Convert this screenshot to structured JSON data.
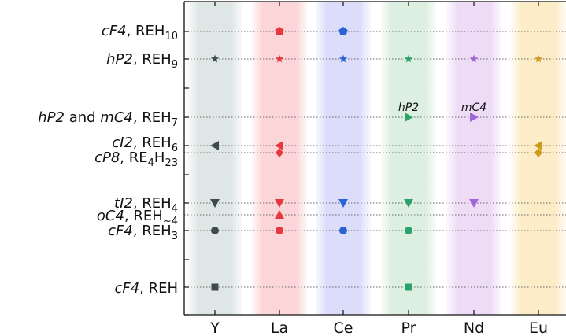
{
  "chart_data": {
    "type": "scatter",
    "title": "",
    "xlabel": "",
    "ylabel": "",
    "x_categories": [
      "Y",
      "La",
      "Ce",
      "Pr",
      "Nd",
      "Eu"
    ],
    "category_colors": {
      "Y": "#3d4a4f",
      "La": "#e8383d",
      "Ce": "#2a63d6",
      "Pr": "#2aa36a",
      "Nd": "#a064dc",
      "Eu": "#cf9a1a"
    },
    "band_colors": {
      "Y": "#dfe7e6",
      "La": "#fbd5d7",
      "Ce": "#dcdcfb",
      "Pr": "#dcefe0",
      "Nd": "#eedcf7",
      "Eu": "#fcecc7"
    },
    "y_categories": [
      {
        "key": "cF4_REH10",
        "pre": "cF4",
        "mid": ", REH",
        "sub": "10"
      },
      {
        "key": "hP2_REH9",
        "pre": "hP2",
        "mid": ", REH",
        "sub": "9"
      },
      {
        "key": "hP2mC4_REH7",
        "pre": "hP2 and mC4",
        "mid": ", REH",
        "sub": "7"
      },
      {
        "key": "cI2_REH6",
        "pre": "cI2",
        "mid": ", REH",
        "sub": "6"
      },
      {
        "key": "cP8_RE4H23",
        "pre": "cP8",
        "mid": ", RE",
        "sub": "4",
        "mid2": "H",
        "sub2": "23"
      },
      {
        "key": "tI2_REH4",
        "pre": "tI2",
        "mid": ", REH",
        "sub": "4"
      },
      {
        "key": "oC4_REH4",
        "pre": "oC4",
        "mid": ", REH",
        "sub": "~4"
      },
      {
        "key": "cF4_REH3",
        "pre": "cF4",
        "mid": ", REH",
        "sub": "3"
      },
      {
        "key": "cF4_REH",
        "pre": "cF4",
        "mid": ", REH",
        "sub": ""
      }
    ],
    "points": [
      {
        "x": "La",
        "y": "cF4_REH10",
        "marker": "pentagon"
      },
      {
        "x": "Ce",
        "y": "cF4_REH10",
        "marker": "pentagon"
      },
      {
        "x": "Y",
        "y": "hP2_REH9",
        "marker": "star"
      },
      {
        "x": "La",
        "y": "hP2_REH9",
        "marker": "star"
      },
      {
        "x": "Ce",
        "y": "hP2_REH9",
        "marker": "star"
      },
      {
        "x": "Pr",
        "y": "hP2_REH9",
        "marker": "star"
      },
      {
        "x": "Nd",
        "y": "hP2_REH9",
        "marker": "star"
      },
      {
        "x": "Eu",
        "y": "hP2_REH9",
        "marker": "star"
      },
      {
        "x": "Pr",
        "y": "hP2mC4_REH7",
        "marker": "triangle-right",
        "label": "hP2"
      },
      {
        "x": "Nd",
        "y": "hP2mC4_REH7",
        "marker": "triangle-right",
        "label": "mC4"
      },
      {
        "x": "Y",
        "y": "cI2_REH6",
        "marker": "triangle-left"
      },
      {
        "x": "La",
        "y": "cI2_REH6",
        "marker": "triangle-left"
      },
      {
        "x": "Eu",
        "y": "cI2_REH6",
        "marker": "triangle-left"
      },
      {
        "x": "La",
        "y": "cP8_RE4H23",
        "marker": "diamond"
      },
      {
        "x": "Eu",
        "y": "cP8_RE4H23",
        "marker": "diamond"
      },
      {
        "x": "Y",
        "y": "tI2_REH4",
        "marker": "triangle-down"
      },
      {
        "x": "La",
        "y": "tI2_REH4",
        "marker": "triangle-down"
      },
      {
        "x": "Ce",
        "y": "tI2_REH4",
        "marker": "triangle-down"
      },
      {
        "x": "Pr",
        "y": "tI2_REH4",
        "marker": "triangle-down"
      },
      {
        "x": "Nd",
        "y": "tI2_REH4",
        "marker": "triangle-down"
      },
      {
        "x": "La",
        "y": "oC4_REH4",
        "marker": "triangle-up"
      },
      {
        "x": "Y",
        "y": "cF4_REH3",
        "marker": "circle"
      },
      {
        "x": "La",
        "y": "cF4_REH3",
        "marker": "circle"
      },
      {
        "x": "Ce",
        "y": "cF4_REH3",
        "marker": "circle"
      },
      {
        "x": "Pr",
        "y": "cF4_REH3",
        "marker": "circle"
      },
      {
        "x": "Y",
        "y": "cF4_REH",
        "marker": "square"
      },
      {
        "x": "Pr",
        "y": "cF4_REH",
        "marker": "square"
      }
    ],
    "grid": "horizontal-dotted",
    "legend": "none"
  }
}
